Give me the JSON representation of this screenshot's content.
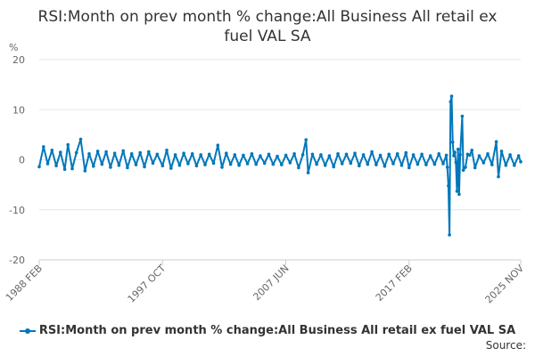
{
  "chart_data": {
    "type": "line",
    "title": "RSI:Month on prev month % change:All Business All retail ex fuel VAL SA",
    "ylabel": "%",
    "ylim": [
      -20,
      20
    ],
    "yticks": [
      -20,
      -10,
      0,
      10,
      20
    ],
    "xticks": [
      "1988 FEB",
      "1997 OCT",
      "2007 JUN",
      "2017 FEB",
      "2025 NOV"
    ],
    "x_range": [
      "1988 FEB",
      "2025 NOV"
    ],
    "grid": true,
    "legend_position": "bottom",
    "series": [
      {
        "name": "RSI:Month on prev month % change:All Business All retail ex fuel VAL SA",
        "color": "#0077bb",
        "points": [
          [
            "1988 FEB",
            -1.4
          ],
          [
            "1988 JUN",
            2.6
          ],
          [
            "1988 OCT",
            -0.8
          ],
          [
            "1989 FEB",
            1.9
          ],
          [
            "1989 JUN",
            -1.2
          ],
          [
            "1989 OCT",
            1.5
          ],
          [
            "1990 FEB",
            -1.9
          ],
          [
            "1990 MAY",
            3.0
          ],
          [
            "1990 SEP",
            -1.8
          ],
          [
            "1991 JAN",
            1.4
          ],
          [
            "1991 MAY",
            4.1
          ],
          [
            "1991 SEP",
            -2.2
          ],
          [
            "1992 JAN",
            1.2
          ],
          [
            "1992 MAY",
            -1.3
          ],
          [
            "1992 SEP",
            1.7
          ],
          [
            "1993 JAN",
            -0.9
          ],
          [
            "1993 MAY",
            1.6
          ],
          [
            "1993 SEP",
            -1.5
          ],
          [
            "1994 JAN",
            1.3
          ],
          [
            "1994 MAY",
            -1.1
          ],
          [
            "1994 SEP",
            1.8
          ],
          [
            "1995 JAN",
            -1.6
          ],
          [
            "1995 MAY",
            1.2
          ],
          [
            "1995 SEP",
            -1.0
          ],
          [
            "1996 JAN",
            1.4
          ],
          [
            "1996 MAY",
            -1.4
          ],
          [
            "1996 SEP",
            1.6
          ],
          [
            "1997 JAN",
            -0.7
          ],
          [
            "1997 MAY",
            1.1
          ],
          [
            "1997 OCT",
            -1.2
          ],
          [
            "1998 FEB",
            1.9
          ],
          [
            "1998 JUN",
            -1.7
          ],
          [
            "1998 OCT",
            1.0
          ],
          [
            "1999 FEB",
            -1.1
          ],
          [
            "1999 JUN",
            1.3
          ],
          [
            "1999 OCT",
            -0.8
          ],
          [
            "2000 FEB",
            1.2
          ],
          [
            "2000 JUN",
            -1.2
          ],
          [
            "2000 OCT",
            1.0
          ],
          [
            "2001 FEB",
            -1.0
          ],
          [
            "2001 JUN",
            1.1
          ],
          [
            "2001 OCT",
            -0.7
          ],
          [
            "2002 FEB",
            2.9
          ],
          [
            "2002 JUN",
            -1.5
          ],
          [
            "2002 OCT",
            1.3
          ],
          [
            "2003 FEB",
            -0.9
          ],
          [
            "2003 JUN",
            1.0
          ],
          [
            "2003 OCT",
            -1.1
          ],
          [
            "2004 FEB",
            0.9
          ],
          [
            "2004 JUN",
            -0.8
          ],
          [
            "2004 OCT",
            1.2
          ],
          [
            "2005 FEB",
            -0.9
          ],
          [
            "2005 JUN",
            0.8
          ],
          [
            "2005 OCT",
            -0.7
          ],
          [
            "2006 FEB",
            1.1
          ],
          [
            "2006 JUN",
            -0.9
          ],
          [
            "2006 OCT",
            0.7
          ],
          [
            "2007 FEB",
            -1.0
          ],
          [
            "2007 JUN",
            0.9
          ],
          [
            "2007 OCT",
            -0.6
          ],
          [
            "2008 FEB",
            1.2
          ],
          [
            "2008 JUN",
            -1.6
          ],
          [
            "2008 OCT",
            1.0
          ],
          [
            "2009 JAN",
            4.0
          ],
          [
            "2009 MAR",
            -2.6
          ],
          [
            "2009 JUL",
            1.1
          ],
          [
            "2009 NOV",
            -0.9
          ],
          [
            "2010 MAR",
            1.0
          ],
          [
            "2010 JUL",
            -1.1
          ],
          [
            "2010 NOV",
            0.8
          ],
          [
            "2011 MAR",
            -1.4
          ],
          [
            "2011 JUL",
            1.2
          ],
          [
            "2011 NOV",
            -0.8
          ],
          [
            "2012 MAR",
            1.1
          ],
          [
            "2012 JUL",
            -0.7
          ],
          [
            "2012 NOV",
            1.3
          ],
          [
            "2013 MAR",
            -1.2
          ],
          [
            "2013 JUL",
            1.0
          ],
          [
            "2013 NOV",
            -0.9
          ],
          [
            "2014 MAR",
            1.6
          ],
          [
            "2014 JUL",
            -1.0
          ],
          [
            "2014 NOV",
            0.9
          ],
          [
            "2015 MAR",
            -1.3
          ],
          [
            "2015 JUL",
            1.1
          ],
          [
            "2015 NOV",
            -0.8
          ],
          [
            "2016 MAR",
            1.2
          ],
          [
            "2016 JUL",
            -1.1
          ],
          [
            "2016 NOV",
            1.4
          ],
          [
            "2017 FEB",
            -1.6
          ],
          [
            "2017 JUN",
            1.0
          ],
          [
            "2017 OCT",
            -0.9
          ],
          [
            "2018 FEB",
            1.1
          ],
          [
            "2018 JUN",
            -1.0
          ],
          [
            "2018 OCT",
            0.8
          ],
          [
            "2019 FEB",
            -0.9
          ],
          [
            "2019 JUN",
            1.2
          ],
          [
            "2019 OCT",
            -0.8
          ],
          [
            "2020 JAN",
            0.9
          ],
          [
            "2020 FEB",
            -1.5
          ],
          [
            "2020 MAR",
            -5.2
          ],
          [
            "2020 APR",
            -15.0
          ],
          [
            "2020 MAY",
            11.6
          ],
          [
            "2020 JUN",
            12.7
          ],
          [
            "2020 JUL",
            3.5
          ],
          [
            "2020 AUG",
            0.8
          ],
          [
            "2020 SEP",
            1.5
          ],
          [
            "2020 OCT",
            -0.5
          ],
          [
            "2020 NOV",
            -6.3
          ],
          [
            "2020 DEC",
            2.1
          ],
          [
            "2021 JAN",
            -6.9
          ],
          [
            "2021 FEB",
            1.0
          ],
          [
            "2021 APR",
            8.7
          ],
          [
            "2021 MAY",
            -2.1
          ],
          [
            "2021 JUL",
            -1.5
          ],
          [
            "2021 SEP",
            1.1
          ],
          [
            "2021 NOV",
            0.9
          ],
          [
            "2022 JAN",
            1.9
          ],
          [
            "2022 APR",
            -1.6
          ],
          [
            "2022 AUG",
            0.8
          ],
          [
            "2022 DEC",
            -0.6
          ],
          [
            "2023 APR",
            1.2
          ],
          [
            "2023 AUG",
            -1.0
          ],
          [
            "2023 DEC",
            3.6
          ],
          [
            "2024 FEB",
            -3.4
          ],
          [
            "2024 MAY",
            1.7
          ],
          [
            "2024 SEP",
            -1.1
          ],
          [
            "2025 JAN",
            1.0
          ],
          [
            "2025 MAY",
            -1.1
          ],
          [
            "2025 SEP",
            0.8
          ],
          [
            "2025 NOV",
            -0.4
          ]
        ]
      }
    ]
  },
  "legend": {
    "label": "RSI:Month on prev month % change:All Business All retail ex fuel VAL SA"
  },
  "footer": {
    "source_label": "Source:"
  }
}
